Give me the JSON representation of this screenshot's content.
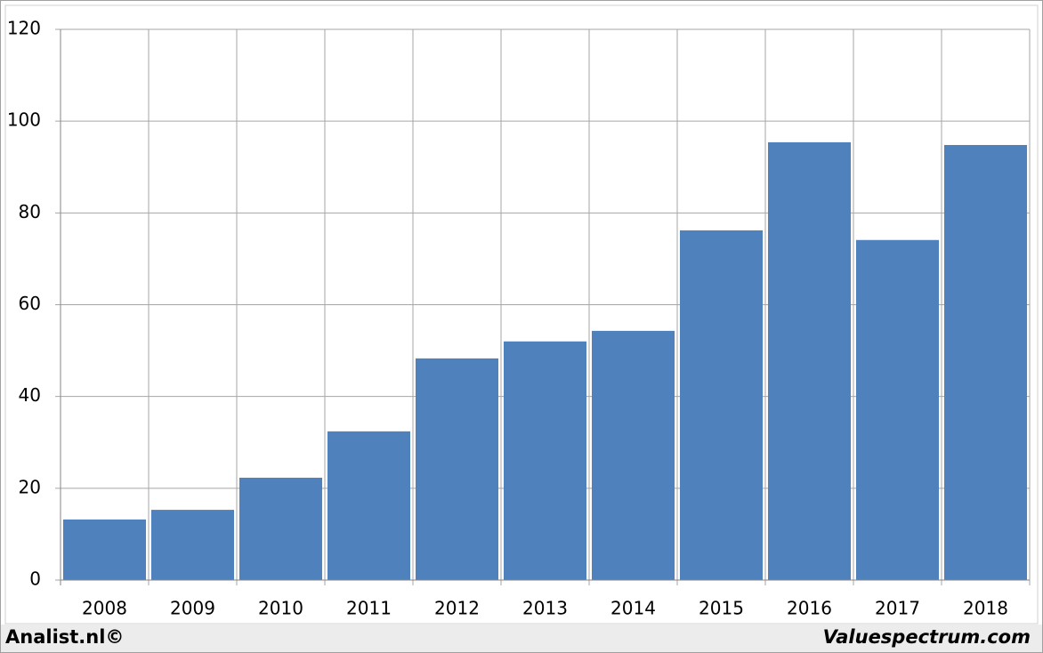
{
  "chart_data": {
    "type": "bar",
    "categories": [
      "2008",
      "2009",
      "2010",
      "2011",
      "2012",
      "2013",
      "2014",
      "2015",
      "2016",
      "2017",
      "2018"
    ],
    "values": [
      13.2,
      15.3,
      22.3,
      32.4,
      48.3,
      52.0,
      54.3,
      76.2,
      95.4,
      74.1,
      94.8
    ],
    "color": "#4f81bd",
    "ylim": [
      0,
      120
    ],
    "yticks": [
      0,
      20,
      40,
      60,
      80,
      100,
      120
    ],
    "grid": true
  },
  "footer": {
    "left": "Analist.nl©",
    "right": "Valuespectrum.com"
  }
}
